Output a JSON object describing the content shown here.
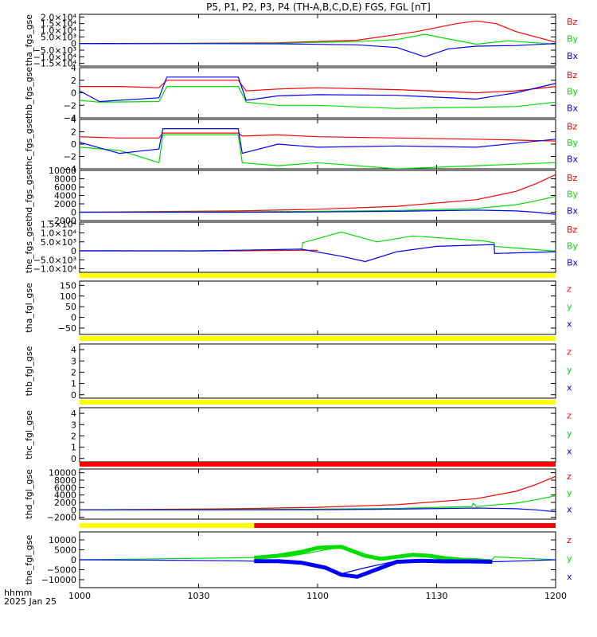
{
  "title": "P5, P1, P2, P3, P4 (TH-A,B,C,D,E) FGS, FGL [nT]",
  "footer": {
    "hhmm": "hhmm",
    "date": "2025 Jan 25"
  },
  "colors": {
    "x": "#0000ff",
    "y": "#00dd00",
    "z": "#ff0000",
    "bar_yellow": "#ffff00",
    "bar_red": "#ff0000"
  },
  "chart_data": {
    "type": "line",
    "x_ticks": [
      "1000",
      "1030",
      "1100",
      "1130",
      "1200"
    ],
    "x_range_minutes": [
      0,
      120
    ],
    "panels": [
      {
        "id": "tha_fgs_gse",
        "ylabel": "tha_fgs_gse",
        "ylim": [
          -17000,
          22000
        ],
        "yticks": [
          {
            "v": 20000,
            "l": "2.0×10⁴"
          },
          {
            "v": 15000,
            "l": "1.5×10⁴"
          },
          {
            "v": 10000,
            "l": "1.0×10⁴"
          },
          {
            "v": 5000,
            "l": "5.0×10³"
          },
          {
            "v": 0,
            "l": "0"
          },
          {
            "v": -5000,
            "l": "−5.0×10³"
          },
          {
            "v": -10000,
            "l": "−1.0×10⁴"
          },
          {
            "v": -15000,
            "l": "−1.5×10⁴"
          }
        ],
        "legend": [
          "Bz",
          "By",
          "Bx"
        ],
        "series": [
          {
            "key": "z",
            "x": [
              0,
              30,
              50,
              70,
              85,
              95,
              100,
              105,
              110,
              120
            ],
            "y": [
              0,
              200,
              600,
              2500,
              9000,
              15000,
              17000,
              15000,
              9000,
              1000
            ]
          },
          {
            "key": "y",
            "x": [
              0,
              30,
              50,
              70,
              80,
              87,
              92,
              100,
              108,
              120
            ],
            "y": [
              0,
              100,
              200,
              1500,
              3000,
              7000,
              4000,
              -500,
              2000,
              -500
            ]
          },
          {
            "key": "x",
            "x": [
              0,
              30,
              50,
              70,
              80,
              87,
              93,
              100,
              110,
              120
            ],
            "y": [
              0,
              -100,
              -200,
              -1000,
              -3000,
              -10000,
              -4000,
              -2000,
              -1500,
              0
            ]
          }
        ]
      },
      {
        "id": "thb_fgs_gse",
        "ylabel": "thb_fgs_gse",
        "ylim": [
          -4,
          4
        ],
        "yticks": [
          {
            "v": 4,
            "l": "4"
          },
          {
            "v": 2,
            "l": "2"
          },
          {
            "v": 0,
            "l": "0"
          },
          {
            "v": -2,
            "l": "−2"
          },
          {
            "v": -4,
            "l": "−4"
          }
        ],
        "legend": [
          "Bz",
          "By",
          "Bx"
        ],
        "series": [
          {
            "key": "z",
            "x": [
              0,
              10,
              20,
              22,
              40,
              42,
              50,
              60,
              80,
              100,
              110,
              120
            ],
            "y": [
              1,
              1,
              0.8,
              2,
              2,
              0.3,
              0.6,
              0.8,
              0.5,
              0,
              0.3,
              1
            ]
          },
          {
            "key": "y",
            "x": [
              0,
              5,
              20,
              22,
              40,
              42,
              50,
              60,
              80,
              100,
              110,
              120
            ],
            "y": [
              -1.2,
              -1.5,
              -1.4,
              1,
              1,
              -1.5,
              -2,
              -2,
              -2.5,
              -2.3,
              -2.2,
              -1.5
            ]
          },
          {
            "key": "x",
            "x": [
              0,
              5,
              20,
              22,
              40,
              42,
              50,
              60,
              80,
              100,
              110,
              120
            ],
            "y": [
              0.3,
              -1.4,
              -0.8,
              2.5,
              2.5,
              -1.2,
              -0.5,
              -0.3,
              -0.4,
              -1,
              0,
              1.5
            ]
          }
        ]
      },
      {
        "id": "thc_fgs_gse",
        "ylabel": "thc_fgs_gse",
        "ylim": [
          -4,
          4
        ],
        "yticks": [
          {
            "v": 4,
            "l": "4"
          },
          {
            "v": 2,
            "l": "2"
          },
          {
            "v": 0,
            "l": "0"
          },
          {
            "v": -2,
            "l": "−2"
          },
          {
            "v": -4,
            "l": "−4"
          }
        ],
        "legend": [
          "Bz",
          "By",
          "Bx"
        ],
        "series": [
          {
            "key": "z",
            "x": [
              0,
              10,
              20,
              21,
              40,
              41,
              50,
              60,
              80,
              100,
              120
            ],
            "y": [
              1.2,
              1,
              1,
              1.8,
              1.8,
              1.3,
              1.5,
              1.2,
              1,
              0.8,
              0.5
            ]
          },
          {
            "key": "y",
            "x": [
              0,
              10,
              20,
              21,
              40,
              41,
              50,
              60,
              80,
              100,
              120
            ],
            "y": [
              -0.5,
              -1,
              -3,
              1.5,
              1.5,
              -3,
              -3.5,
              -3,
              -4,
              -3.5,
              -3
            ]
          },
          {
            "key": "x",
            "x": [
              0,
              10,
              20,
              21,
              40,
              41,
              50,
              60,
              80,
              100,
              120
            ],
            "y": [
              0.3,
              -1.5,
              -0.8,
              2.5,
              2.5,
              -1.5,
              0,
              -0.5,
              -0.3,
              -0.5,
              0.8
            ]
          }
        ]
      },
      {
        "id": "thd_fgs_gse",
        "ylabel": "thd_fgs_gse",
        "ylim": [
          -2000,
          10000
        ],
        "yticks": [
          {
            "v": 10000,
            "l": "10000"
          },
          {
            "v": 8000,
            "l": "8000"
          },
          {
            "v": 6000,
            "l": "6000"
          },
          {
            "v": 4000,
            "l": "4000"
          },
          {
            "v": 2000,
            "l": "2000"
          },
          {
            "v": 0,
            "l": "0"
          },
          {
            "v": -2000,
            "l": "−2000"
          }
        ],
        "legend": [
          "Bz",
          "By",
          "Bx"
        ],
        "series": [
          {
            "key": "z",
            "x": [
              0,
              40,
              60,
              80,
              100,
              110,
              115,
              120
            ],
            "y": [
              0,
              300,
              700,
              1400,
              3000,
              5000,
              6800,
              9000
            ]
          },
          {
            "key": "y",
            "x": [
              0,
              40,
              60,
              80,
              100,
              110,
              115,
              120
            ],
            "y": [
              0,
              100,
              200,
              400,
              900,
              1800,
              2700,
              3800
            ]
          },
          {
            "key": "x",
            "x": [
              0,
              40,
              60,
              80,
              100,
              110,
              115,
              120
            ],
            "y": [
              0,
              0,
              50,
              200,
              500,
              300,
              0,
              -500
            ]
          }
        ]
      },
      {
        "id": "the_fgs_gse",
        "ylabel": "the_fgs_gse",
        "ylim": [
          -12000,
          16000
        ],
        "yticks": [
          {
            "v": 15000,
            "l": "1.5×10⁴"
          },
          {
            "v": 10000,
            "l": "1.0×10⁴"
          },
          {
            "v": 5000,
            "l": "5.0×10³"
          },
          {
            "v": 0,
            "l": "0"
          },
          {
            "v": -5000,
            "l": "−5.0×10³"
          },
          {
            "v": -10000,
            "l": "−1.0×10⁴"
          }
        ],
        "legend": [
          "Bz",
          "By",
          "Bx"
        ],
        "series": [
          {
            "key": "z",
            "x": [
              0,
              40,
              55,
              60
            ],
            "y": [
              0,
              0,
              300,
              300
            ]
          },
          {
            "key": "y",
            "x": [
              0,
              30,
              40,
              56,
              56.2,
              66,
              75,
              84,
              102,
              104.5,
              104.6,
              120
            ],
            "y": [
              0,
              100,
              300,
              1000,
              4500,
              10500,
              5000,
              8300,
              5500,
              4500,
              2500,
              -200
            ]
          },
          {
            "key": "x",
            "x": [
              0,
              30,
              40,
              56,
              56.2,
              66,
              72,
              80,
              90,
              104.5,
              104.6,
              120
            ],
            "y": [
              0,
              -100,
              300,
              1000,
              800,
              -3000,
              -6000,
              -500,
              2500,
              3500,
              -1500,
              -500
            ]
          }
        ]
      },
      {
        "id": "tha_fgl_gse",
        "ylabel": "tha_fgl_gse",
        "ylim": [
          -80,
          170
        ],
        "yticks": [
          {
            "v": 150,
            "l": "150"
          },
          {
            "v": 100,
            "l": "100"
          },
          {
            "v": 50,
            "l": "50"
          },
          {
            "v": 0,
            "l": "0"
          },
          {
            "v": -50,
            "l": "−50"
          }
        ],
        "legend": [
          "z",
          "y",
          "x"
        ],
        "series": []
      },
      {
        "id": "thb_fgl_gse",
        "ylabel": "thb_fgl_gse",
        "ylim": [
          -0.3,
          4.5
        ],
        "yticks": [
          {
            "v": 4,
            "l": "4"
          },
          {
            "v": 3,
            "l": "3"
          },
          {
            "v": 2,
            "l": "2"
          },
          {
            "v": 1,
            "l": "1"
          },
          {
            "v": 0,
            "l": "0"
          }
        ],
        "legend": [
          "z",
          "y",
          "x"
        ],
        "series": []
      },
      {
        "id": "thc_fgl_gse",
        "ylabel": "thc_fgl_gse",
        "ylim": [
          -0.3,
          4.5
        ],
        "yticks": [
          {
            "v": 4,
            "l": "4"
          },
          {
            "v": 3,
            "l": "3"
          },
          {
            "v": 2,
            "l": "2"
          },
          {
            "v": 1,
            "l": "1"
          },
          {
            "v": 0,
            "l": "0"
          }
        ],
        "legend": [
          "z",
          "y",
          "x"
        ],
        "series": []
      },
      {
        "id": "thd_fgl_gse",
        "ylabel": "thd_fgl_gse",
        "ylim": [
          -2500,
          11000
        ],
        "yticks": [
          {
            "v": 10000,
            "l": "10000"
          },
          {
            "v": 8000,
            "l": "8000"
          },
          {
            "v": 6000,
            "l": "6000"
          },
          {
            "v": 4000,
            "l": "4000"
          },
          {
            "v": 2000,
            "l": "2000"
          },
          {
            "v": 0,
            "l": "0"
          },
          {
            "v": -2000,
            "l": "−2000"
          }
        ],
        "legend": [
          "z",
          "y",
          "x"
        ],
        "series": [
          {
            "key": "z",
            "x": [
              0,
              40,
              60,
              80,
              100,
              110,
              115,
              120
            ],
            "y": [
              0,
              300,
              700,
              1400,
              3000,
              5000,
              6800,
              9000
            ]
          },
          {
            "key": "y",
            "x": [
              0,
              40,
              60,
              80,
              99,
              99.2,
              100,
              110,
              115,
              120
            ],
            "y": [
              0,
              100,
              200,
              400,
              900,
              1800,
              900,
              1800,
              2700,
              3800
            ]
          },
          {
            "key": "x",
            "x": [
              0,
              40,
              60,
              80,
              100,
              110,
              115,
              120
            ],
            "y": [
              0,
              0,
              50,
              200,
              500,
              300,
              0,
              -500
            ]
          }
        ]
      },
      {
        "id": "the_fgl_gse",
        "ylabel": "the_fgl_gse",
        "ylim": [
          -14000,
          14000
        ],
        "yticks": [
          {
            "v": 10000,
            "l": "10000"
          },
          {
            "v": 5000,
            "l": "5000"
          },
          {
            "v": 0,
            "l": "0"
          },
          {
            "v": -5000,
            "l": "−5000"
          },
          {
            "v": -10000,
            "l": "−10000"
          }
        ],
        "legend": [
          "z",
          "y",
          "x"
        ],
        "series": [
          {
            "key": "y",
            "x": [
              0,
              20,
              40,
              52,
              58,
              66,
              72,
              76,
              84,
              92,
              98,
              104,
              104.5,
              120
            ],
            "y": [
              0,
              500,
              1000,
              1500,
              3500,
              6500,
              2500,
              500,
              2500,
              1500,
              500,
              0,
              1500,
              0
            ]
          },
          {
            "key": "x",
            "x": [
              0,
              20,
              40,
              52,
              58,
              66,
              72,
              80,
              88,
              98,
              104,
              104.5,
              120
            ],
            "y": [
              0,
              -200,
              -500,
              -1000,
              -2500,
              -7000,
              -4000,
              -500,
              -1000,
              -1000,
              -1000,
              -1000,
              0
            ]
          },
          {
            "key": "y",
            "thick": true,
            "x": [
              44,
              50,
              56,
              60,
              66,
              72,
              76,
              80,
              84,
              88,
              92,
              96,
              100,
              104
            ],
            "y": [
              1000,
              2000,
              4000,
              6000,
              6500,
              2000,
              500,
              1500,
              2500,
              2000,
              800,
              0,
              -200,
              -1000
            ]
          },
          {
            "key": "x",
            "thick": true,
            "x": [
              44,
              50,
              56,
              62,
              66,
              70,
              74,
              80,
              86,
              92,
              98,
              104
            ],
            "y": [
              -700,
              -700,
              -1500,
              -4000,
              -7500,
              -8500,
              -5500,
              -1000,
              -500,
              -800,
              -800,
              -1000
            ]
          }
        ]
      }
    ],
    "status_bars": [
      {
        "after": "the_fgs_gse",
        "segments": [
          {
            "from": 0,
            "to": 120,
            "color": "bar_yellow"
          }
        ]
      },
      {
        "after": "tha_fgl_gse",
        "segments": [
          {
            "from": 0,
            "to": 120,
            "color": "bar_yellow"
          }
        ]
      },
      {
        "after": "thb_fgl_gse",
        "segments": [
          {
            "from": 0,
            "to": 120,
            "color": "bar_yellow"
          }
        ]
      },
      {
        "after": "thc_fgl_gse",
        "segments": [
          {
            "from": 0,
            "to": 120,
            "color": "bar_red"
          }
        ]
      },
      {
        "after": "thd_fgl_gse",
        "segments": [
          {
            "from": 0,
            "to": 44,
            "color": "bar_yellow"
          },
          {
            "from": 44,
            "to": 120,
            "color": "bar_red"
          }
        ]
      }
    ]
  }
}
